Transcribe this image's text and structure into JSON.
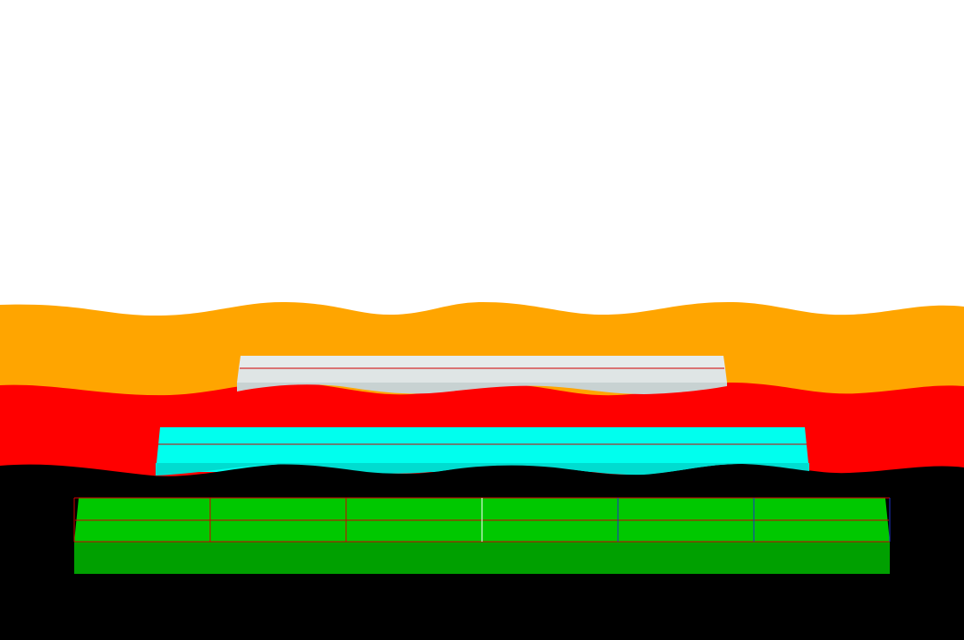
{
  "colors": {
    "background": "#ffffff",
    "layer_top": "#ffa500",
    "layer_middle": "#ff0000",
    "layer_bottom": "#000000",
    "block_light_face": "#e6ebeb",
    "block_light_side": "#c8d2d2",
    "block_cyan_face": "#00ffee",
    "block_cyan_side": "#00dcd0",
    "block_green_face": "#00c800",
    "block_green_side": "#00a000",
    "grid_line_red": "#d00000",
    "grid_line_white": "#ffffff",
    "grid_line_blue": "#1e32c8"
  },
  "layers": [
    {
      "name": "orange-layer",
      "color_key": "layer_top"
    },
    {
      "name": "red-layer",
      "color_key": "layer_middle"
    },
    {
      "name": "black-layer",
      "color_key": "layer_bottom"
    }
  ],
  "blocks": [
    {
      "name": "light-block",
      "face_key": "block_light_face",
      "side_key": "block_light_side"
    },
    {
      "name": "cyan-block",
      "face_key": "block_cyan_face",
      "side_key": "block_cyan_side"
    },
    {
      "name": "green-block",
      "face_key": "block_green_face",
      "side_key": "block_green_side"
    }
  ]
}
